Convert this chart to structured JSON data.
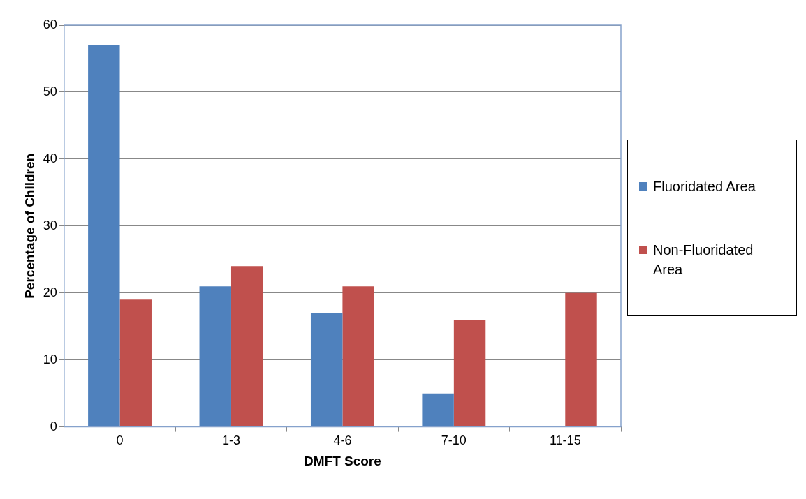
{
  "chart_data": {
    "type": "bar",
    "xlabel": "DMFT Score",
    "ylabel": "Percentage of Children",
    "categories": [
      "0",
      "1-3",
      "4-6",
      "7-10",
      "11-15"
    ],
    "series": [
      {
        "name": "Fluoridated Area",
        "color": "#4f81bd",
        "values": [
          57,
          21,
          17,
          5,
          0
        ]
      },
      {
        "name": "Non-Fluoridated Area",
        "color": "#c0504d",
        "values": [
          19,
          24,
          21,
          16,
          20
        ]
      }
    ],
    "ylim": [
      0,
      60
    ],
    "yticks": [
      0,
      10,
      20,
      30,
      40,
      50,
      60
    ],
    "grid": "y",
    "legend": "right"
  }
}
